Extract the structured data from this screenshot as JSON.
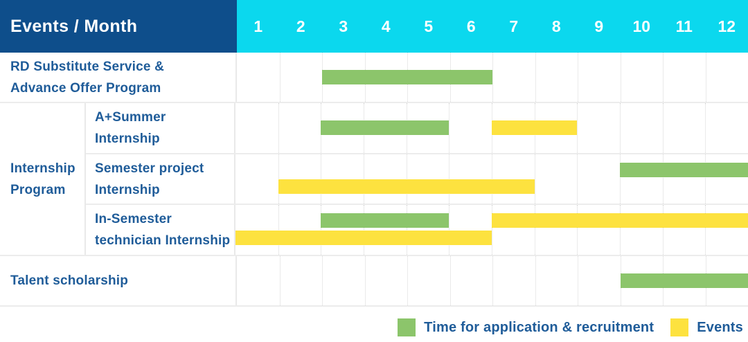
{
  "colors": {
    "navy_header": "#0E4E8B",
    "cyan_header": "#0BD8EE",
    "label_blue": "#1F5C99",
    "green": "#8CC56B",
    "yellow": "#FDE23F",
    "grid_line": "#ECECEC"
  },
  "header": {
    "left_label": "Events / Month"
  },
  "legend": {
    "items": [
      {
        "label": "Time for application & recruitment",
        "series": "Time for application & recruitment"
      },
      {
        "label": "Events",
        "series": "Events"
      }
    ]
  },
  "chart_data": {
    "type": "bar",
    "subtype": "gantt-timeline",
    "title": "Events / Month",
    "x_axis": {
      "label": "Month",
      "ticks": [
        "1",
        "2",
        "3",
        "4",
        "5",
        "6",
        "7",
        "8",
        "9",
        "10",
        "11",
        "12"
      ],
      "range_months": [
        1,
        12
      ]
    },
    "grid": "vertical-dotted-per-month",
    "legend_position": "bottom-right",
    "series_colors": {
      "Time for application & recruitment": "#8CC56B",
      "Events": "#FDE23F"
    },
    "groups": [
      {
        "group_label": null,
        "events": [
          {
            "label": "RD Substitute Service & Advance Offer Program",
            "label_lines": [
              "RD Substitute Service &",
              "Advance Offer Program"
            ],
            "bars": [
              {
                "series": "Time for application & recruitment",
                "start_month": 3,
                "end_month": 6,
                "lane": "center"
              }
            ]
          }
        ]
      },
      {
        "group_label": "Internship Program",
        "group_label_lines": [
          "Internship",
          "Program"
        ],
        "events": [
          {
            "label": "A+Summer Internship",
            "label_lines": [
              "A+Summer",
              "Internship"
            ],
            "bars": [
              {
                "series": "Time for application & recruitment",
                "start_month": 3,
                "end_month": 5,
                "lane": "center"
              },
              {
                "series": "Events",
                "start_month": 7,
                "end_month": 8,
                "lane": "center"
              }
            ]
          },
          {
            "label": "Semester project Internship",
            "label_lines": [
              "Semester project",
              "Internship"
            ],
            "bars": [
              {
                "series": "Time for application & recruitment",
                "start_month": 10,
                "end_month": 12,
                "lane": "top"
              },
              {
                "series": "Events",
                "start_month": 2,
                "end_month": 7,
                "lane": "bottom"
              }
            ]
          },
          {
            "label": "In-Semester technician Internship",
            "label_lines": [
              "In-Semester",
              "technician Internship"
            ],
            "bars": [
              {
                "series": "Time for application & recruitment",
                "start_month": 3,
                "end_month": 5,
                "lane": "top"
              },
              {
                "series": "Events",
                "start_month": 7,
                "end_month": 12,
                "lane": "top"
              },
              {
                "series": "Events",
                "start_month": 1,
                "end_month": 6,
                "lane": "bottom"
              }
            ]
          }
        ]
      },
      {
        "group_label": null,
        "events": [
          {
            "label": "Talent scholarship",
            "label_lines": [
              "Talent scholarship"
            ],
            "bars": [
              {
                "series": "Time for application & recruitment",
                "start_month": 10,
                "end_month": 12,
                "lane": "center"
              }
            ]
          }
        ]
      }
    ]
  }
}
